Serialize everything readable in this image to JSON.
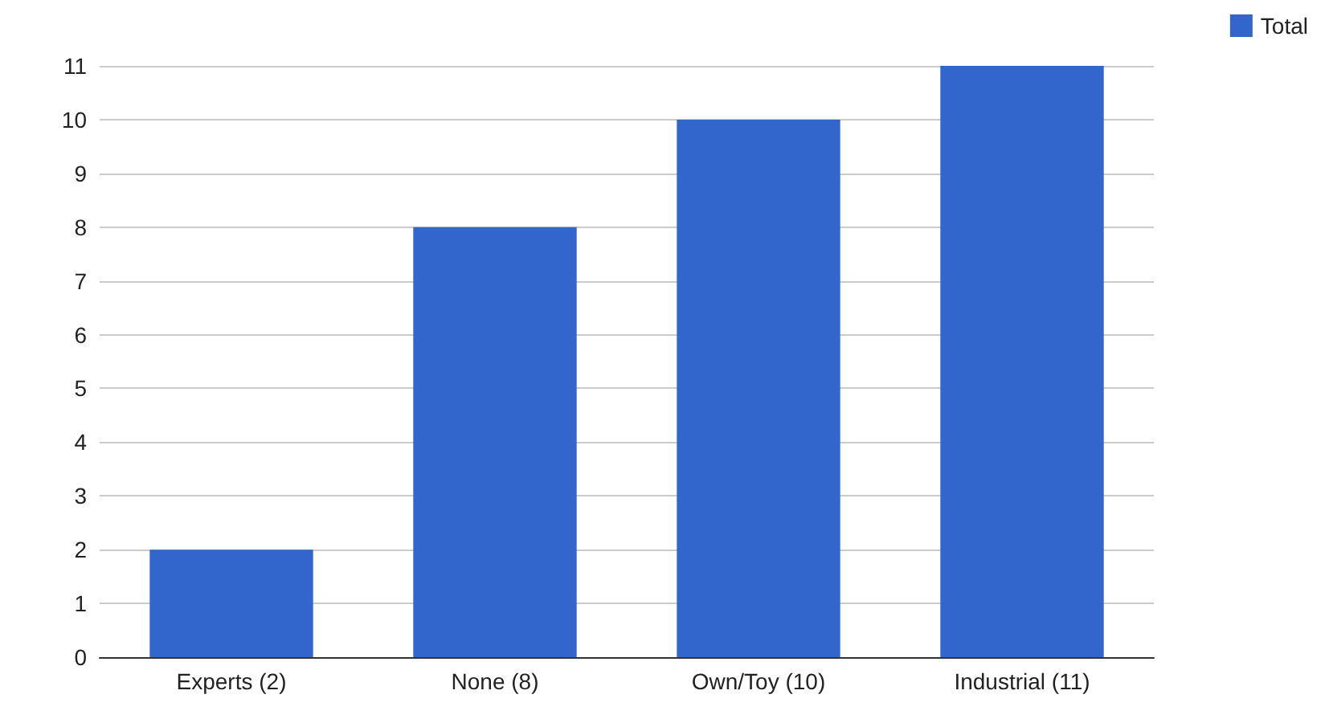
{
  "chart_data": {
    "type": "bar",
    "categories": [
      "Experts (2)",
      "None (8)",
      "Own/Toy (10)",
      "Industrial (11)"
    ],
    "series": [
      {
        "name": "Total",
        "color": "#3366cc",
        "values": [
          2,
          8,
          10,
          11
        ]
      }
    ],
    "ylim": [
      0,
      11
    ],
    "yticks": [
      0,
      1,
      2,
      3,
      4,
      5,
      6,
      7,
      8,
      9,
      10,
      11
    ],
    "grid": "y",
    "legend": "top right"
  }
}
